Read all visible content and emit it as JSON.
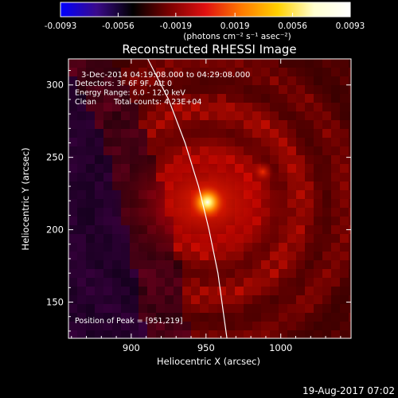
{
  "colorbar": {
    "tick_labels": [
      "-0.0093",
      "-0.0056",
      "-0.0019",
      "0.0019",
      "0.0056",
      "0.0093"
    ],
    "tick_values": [
      -0.0093,
      -0.0056,
      -0.0019,
      0.0019,
      0.0056,
      0.0093
    ],
    "range": [
      -0.0093,
      0.0093
    ],
    "units": "(photons cm⁻² s⁻¹ asec⁻²)",
    "colormap": [
      "#0000ff",
      "#3a0a8a",
      "#000000",
      "#7a0000",
      "#e01010",
      "#ff7a00",
      "#ffd000",
      "#ffffd0",
      "#ffffff"
    ]
  },
  "chart_data": {
    "type": "heatmap",
    "title": "Reconstructed RHESSI Image",
    "xlabel": "Heliocentric X (arcsec)",
    "ylabel": "Heliocentric Y (arcsec)",
    "xlim": [
      858,
      1047
    ],
    "ylim": [
      125,
      318
    ],
    "xticks": [
      900,
      950,
      1000
    ],
    "yticks": [
      150,
      200,
      250,
      300
    ],
    "info": {
      "time_range": "3-Dec-2014 04:19:08.000 to 04:29:08.000",
      "detectors": "Detectors: 3F 6F 9F, Att 0",
      "energy_range": "Energy Range: 6.0 - 12.0 keV",
      "method": "Clean",
      "total_counts": "Total counts: 4.23E+04",
      "peak_label": "Position of Peak = [951,219]"
    },
    "peak_position": [
      951,
      219
    ],
    "secondary_source": [
      988,
      240
    ],
    "limb_curve": [
      [
        911,
        318
      ],
      [
        925,
        290
      ],
      [
        936,
        260
      ],
      [
        945,
        230
      ],
      [
        952,
        200
      ],
      [
        958,
        170
      ],
      [
        962,
        140
      ],
      [
        964,
        125
      ]
    ]
  },
  "footer": {
    "timestamp": "19-Aug-2017 07:02"
  }
}
